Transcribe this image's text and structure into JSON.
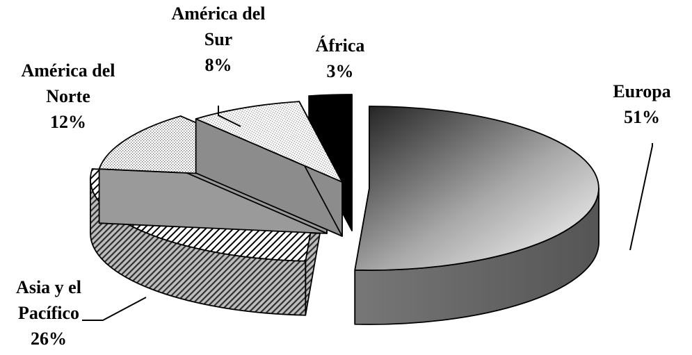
{
  "chart_data": {
    "type": "pie",
    "style": "3d-exploded",
    "title": "",
    "slices": [
      {
        "name": "Europa",
        "label_lines": [
          "Europa"
        ],
        "pct_label": "51%",
        "value": 51,
        "fill": "gradient"
      },
      {
        "name": "Asia y el Pacífico",
        "label_lines": [
          "Asia y el",
          "Pacífico"
        ],
        "pct_label": "26%",
        "value": 26,
        "fill": "diagonal-hatch"
      },
      {
        "name": "América del Norte",
        "label_lines": [
          "América del",
          "Norte"
        ],
        "pct_label": "12%",
        "value": 12,
        "fill": "dotted"
      },
      {
        "name": "América del Sur",
        "label_lines": [
          "América del",
          "Sur"
        ],
        "pct_label": "8%",
        "value": 8,
        "fill": "fine-dots"
      },
      {
        "name": "África",
        "label_lines": [
          "África"
        ],
        "pct_label": "3%",
        "value": 3,
        "fill": "solid-black"
      }
    ]
  }
}
